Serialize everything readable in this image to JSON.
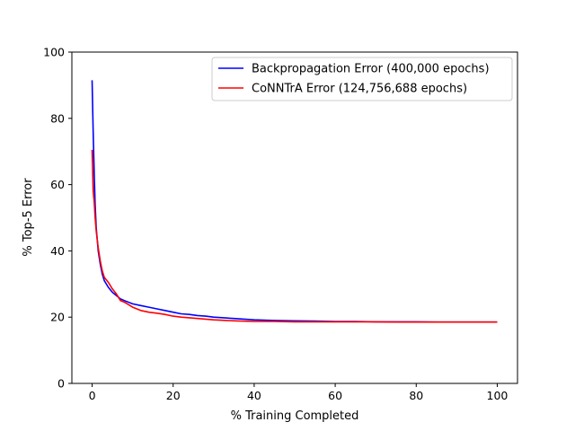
{
  "chart_data": {
    "type": "line",
    "title": "",
    "xlabel": "% Training Completed",
    "ylabel": "% Top-5 Error",
    "xlim": [
      -5,
      105
    ],
    "ylim": [
      0,
      100
    ],
    "xticks": [
      0,
      20,
      40,
      60,
      80,
      100
    ],
    "yticks": [
      0,
      20,
      40,
      60,
      80,
      100
    ],
    "grid": false,
    "legend_position": "upper right",
    "series": [
      {
        "name": "Backpropagation Error (400,000 epochs)",
        "color": "#0000ff",
        "x": [
          0,
          0.25,
          0.5,
          0.75,
          1,
          1.5,
          2,
          2.5,
          3,
          4,
          5,
          6,
          7,
          8,
          10,
          12,
          14,
          16,
          18,
          20,
          22,
          24,
          26,
          28,
          30,
          35,
          40,
          45,
          50,
          55,
          60,
          65,
          70,
          75,
          80,
          85,
          90,
          95,
          100
        ],
        "y": [
          91.5,
          76,
          64,
          54,
          47,
          40,
          36,
          33,
          31,
          29,
          27.5,
          26.5,
          25.5,
          25,
          24,
          23.5,
          23,
          22.5,
          22,
          21.5,
          21,
          20.8,
          20.5,
          20.3,
          20,
          19.6,
          19.2,
          19,
          18.9,
          18.8,
          18.7,
          18.7,
          18.6,
          18.6,
          18.6,
          18.5,
          18.5,
          18.5,
          18.5
        ]
      },
      {
        "name": "CoNNTrA Error (124,756,688 epochs)",
        "color": "#ff0000",
        "x": [
          0,
          0.25,
          0.5,
          0.75,
          1,
          1.5,
          2,
          2.5,
          3,
          4,
          5,
          6,
          7,
          8,
          10,
          12,
          14,
          16,
          18,
          20,
          22,
          24,
          26,
          28,
          30,
          35,
          40,
          45,
          50,
          55,
          60,
          65,
          70,
          75,
          80,
          85,
          90,
          95,
          100
        ],
        "y": [
          70.5,
          58,
          55,
          50,
          46,
          41,
          37,
          34,
          32,
          30.5,
          28.5,
          27,
          25,
          24.5,
          23,
          22,
          21.5,
          21.2,
          20.8,
          20.3,
          20,
          19.8,
          19.6,
          19.4,
          19.2,
          18.9,
          18.7,
          18.7,
          18.6,
          18.6,
          18.6,
          18.6,
          18.6,
          18.5,
          18.5,
          18.5,
          18.5,
          18.5,
          18.5
        ]
      }
    ]
  }
}
